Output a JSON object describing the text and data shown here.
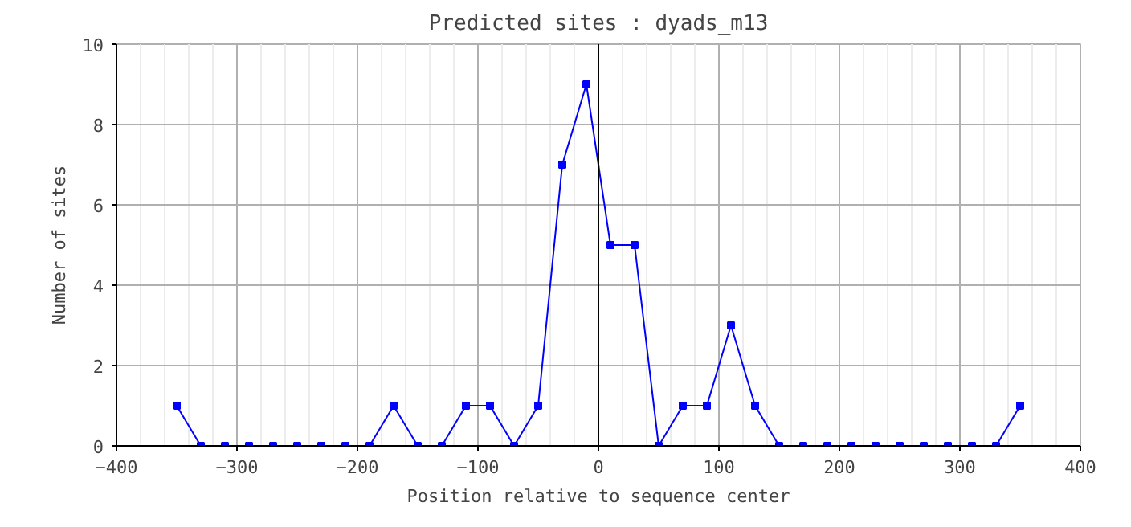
{
  "chart_data": {
    "type": "line",
    "title": "Predicted sites : dyads_m13",
    "xlabel": "Position relative to sequence center",
    "ylabel": "Number of sites",
    "x": [
      -350,
      -330,
      -310,
      -290,
      -270,
      -250,
      -230,
      -210,
      -190,
      -170,
      -150,
      -130,
      -110,
      -90,
      -70,
      -50,
      -30,
      -10,
      10,
      30,
      50,
      70,
      90,
      110,
      130,
      150,
      170,
      190,
      210,
      230,
      250,
      270,
      290,
      310,
      330,
      350
    ],
    "series": [
      {
        "color": "#0000ff",
        "values": [
          1,
          0,
          0,
          0,
          0,
          0,
          0,
          0,
          0,
          1,
          0,
          0,
          1,
          1,
          0,
          1,
          7,
          9,
          5,
          5,
          0,
          1,
          1,
          3,
          1,
          0,
          0,
          0,
          0,
          0,
          0,
          0,
          0,
          0,
          0,
          1
        ]
      }
    ],
    "xlim": [
      -400,
      400
    ],
    "xticks": [
      -400,
      -300,
      -200,
      -100,
      0,
      100,
      200,
      300,
      400
    ],
    "ylim": [
      0,
      10
    ],
    "yticks": [
      0,
      2,
      4,
      6,
      8,
      10
    ],
    "ref_lines": [
      {
        "axis": "x",
        "value": 0,
        "color": "#000000"
      }
    ],
    "grid": true,
    "marker": "square",
    "line_style": "solid"
  }
}
